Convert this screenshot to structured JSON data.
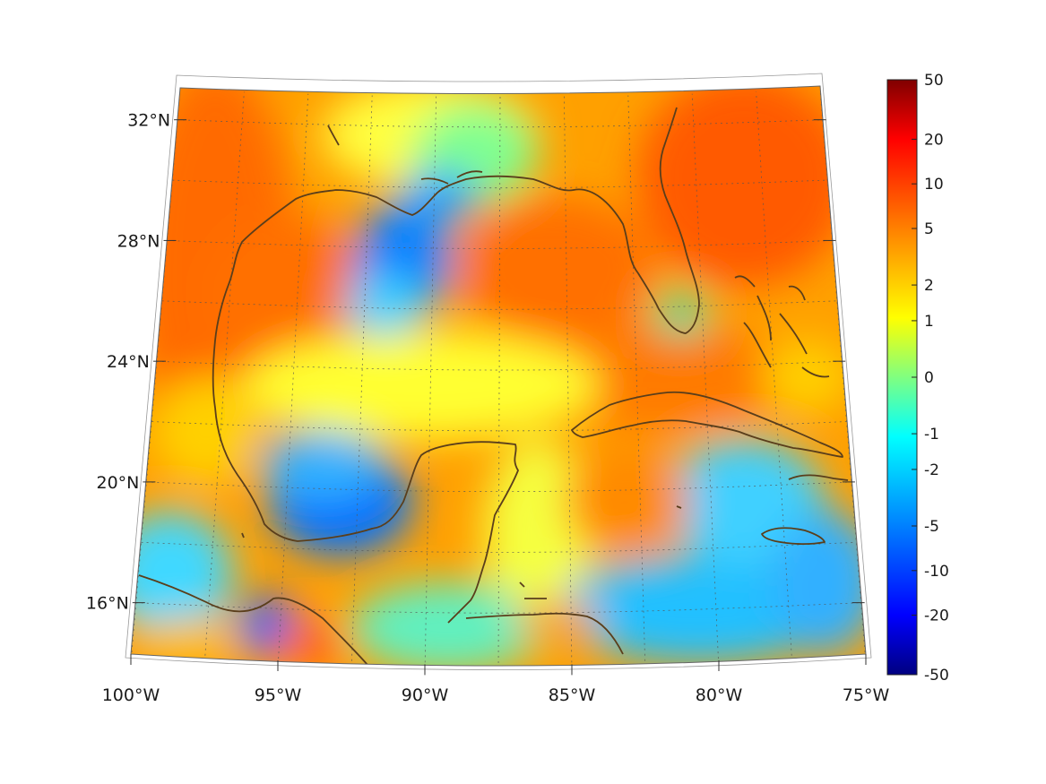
{
  "map": {
    "projection": "conic",
    "extent": {
      "lon_min": -100,
      "lon_max": -75,
      "lat_min": 14,
      "lat_max": 33
    },
    "grid_lines": "dotted",
    "coastline_color": "#5a3e1b",
    "colormap": "jet"
  },
  "axes": {
    "lon_ticks": [
      {
        "value": -100,
        "label": "100°W"
      },
      {
        "value": -95,
        "label": "95°W"
      },
      {
        "value": -90,
        "label": "90°W"
      },
      {
        "value": -85,
        "label": "85°W"
      },
      {
        "value": -80,
        "label": "80°W"
      },
      {
        "value": -75,
        "label": "75°W"
      }
    ],
    "lat_ticks": [
      {
        "value": 16,
        "label": "16°N"
      },
      {
        "value": 20,
        "label": "20°N"
      },
      {
        "value": 24,
        "label": "24°N"
      },
      {
        "value": 28,
        "label": "28°N"
      },
      {
        "value": 32,
        "label": "32°N"
      }
    ]
  },
  "colorbar": {
    "scale": "symmetric-log",
    "ticks": [
      "50",
      "20",
      "10",
      "5",
      "2",
      "1",
      "0",
      "-1",
      "-2",
      "-5",
      "-10",
      "-20",
      "-50"
    ],
    "colors": [
      "#800000",
      "#ff0000",
      "#ff8000",
      "#ffff00",
      "#80ff80",
      "#00ffff",
      "#0080ff",
      "#0000ff",
      "#000080"
    ]
  }
}
